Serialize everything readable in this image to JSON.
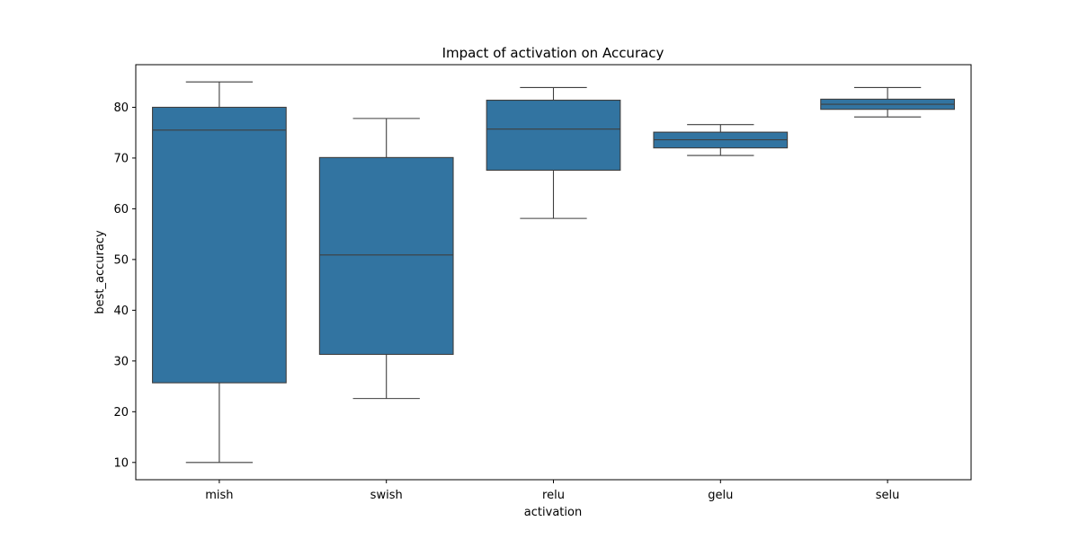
{
  "chart_data": {
    "type": "box",
    "title": "Impact of activation on Accuracy",
    "xlabel": "activation",
    "ylabel": "best_accuracy",
    "ylim": [
      6.6,
      88.4
    ],
    "yticks": [
      10,
      20,
      30,
      40,
      50,
      60,
      70,
      80
    ],
    "grid": false,
    "legend": "none",
    "box_color": "#3274a1",
    "line_color": "#3f3f3f",
    "categories": [
      "mish",
      "swish",
      "relu",
      "gelu",
      "selu"
    ],
    "boxes": [
      {
        "category": "mish",
        "whisker_low": 10.0,
        "q1": 25.7,
        "median": 75.5,
        "q3": 80.0,
        "whisker_high": 85.0
      },
      {
        "category": "swish",
        "whisker_low": 22.6,
        "q1": 31.3,
        "median": 50.9,
        "q3": 70.1,
        "whisker_high": 77.8
      },
      {
        "category": "relu",
        "whisker_low": 58.1,
        "q1": 67.6,
        "median": 75.7,
        "q3": 81.4,
        "whisker_high": 83.9
      },
      {
        "category": "gelu",
        "whisker_low": 70.5,
        "q1": 72.0,
        "median": 73.6,
        "q3": 75.1,
        "whisker_high": 76.6
      },
      {
        "category": "selu",
        "whisker_low": 78.1,
        "q1": 79.6,
        "median": 80.6,
        "q3": 81.6,
        "whisker_high": 83.9
      }
    ]
  }
}
